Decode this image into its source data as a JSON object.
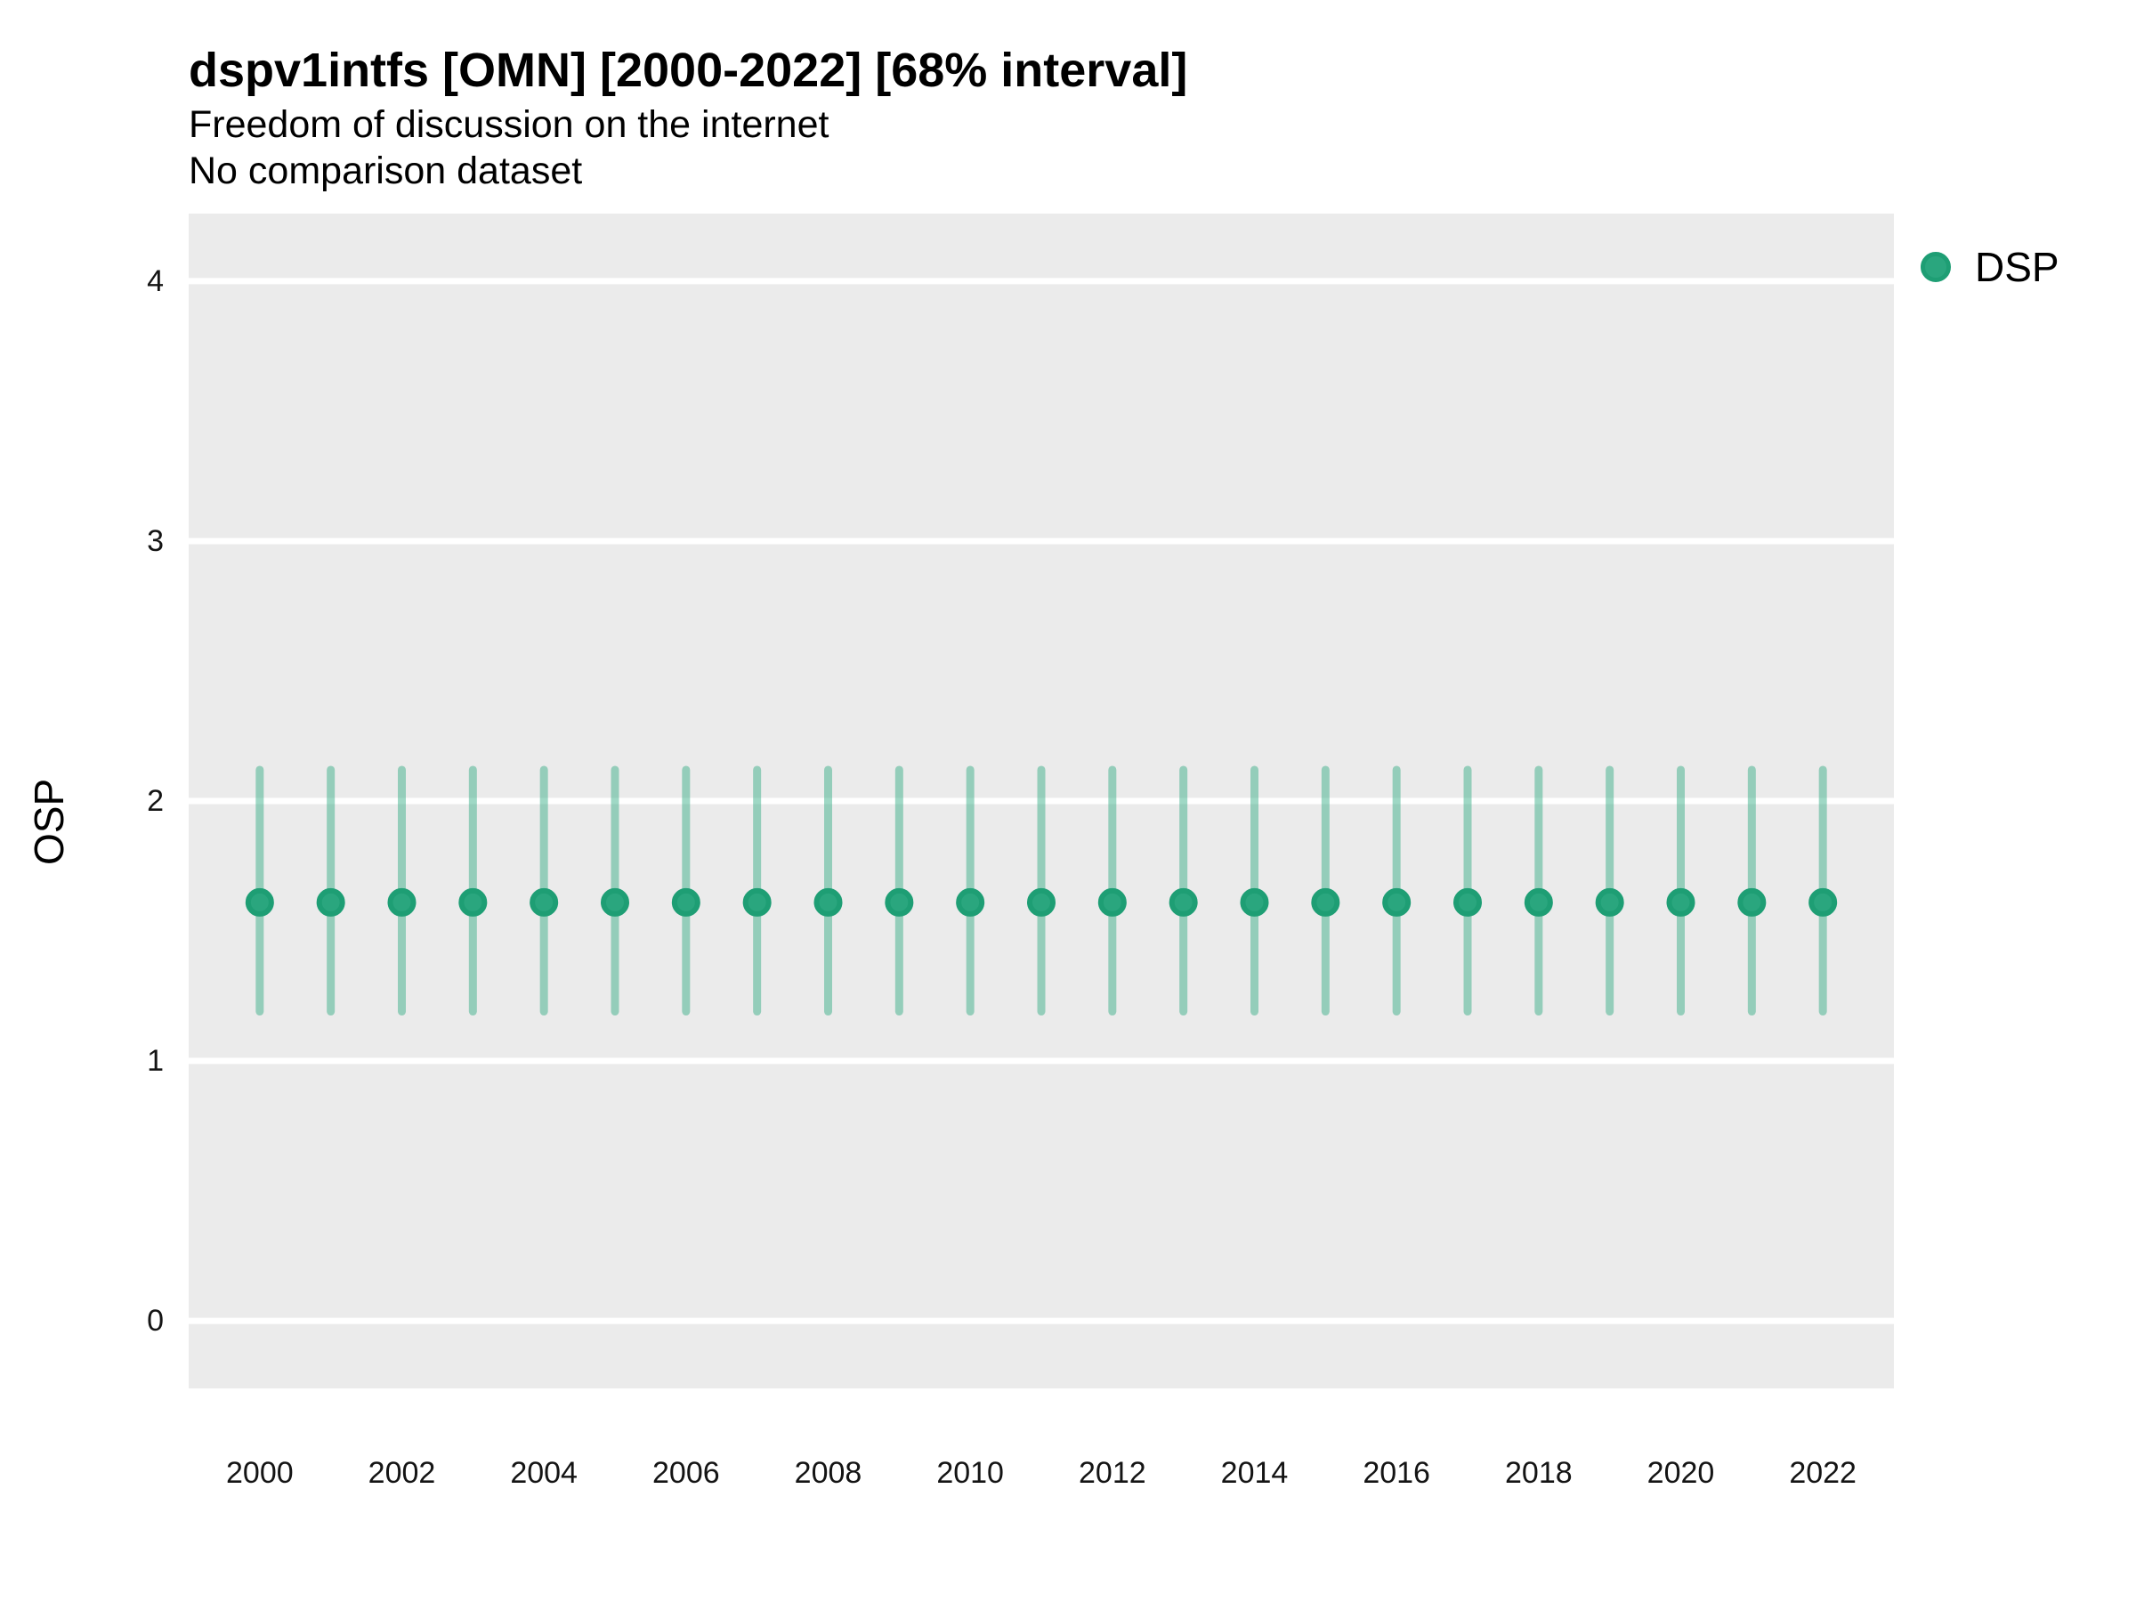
{
  "colors": {
    "page_bg": "#ffffff",
    "panel_bg": "#ebebeb",
    "gridline": "#ffffff",
    "point_fill": "#2aa67e",
    "point_stroke": "#1e9e74",
    "interval_stroke": "rgba(42,168,127,0.45)",
    "tick_text": "#141414",
    "title_text": "#000000"
  },
  "chart_data": {
    "type": "scatter",
    "title": "dspv1intfs [OMN] [2000-2022] [68% interval]",
    "subtitle": "Freedom of discussion on the internet",
    "note": "No comparison dataset",
    "xlabel": "",
    "ylabel": "OSP",
    "x": [
      2000,
      2001,
      2002,
      2003,
      2004,
      2005,
      2006,
      2007,
      2008,
      2009,
      2010,
      2011,
      2012,
      2013,
      2014,
      2015,
      2016,
      2017,
      2018,
      2019,
      2020,
      2021,
      2022
    ],
    "series": [
      {
        "name": "DSP",
        "values": [
          1.61,
          1.61,
          1.61,
          1.61,
          1.61,
          1.61,
          1.61,
          1.61,
          1.61,
          1.61,
          1.61,
          1.61,
          1.61,
          1.61,
          1.61,
          1.61,
          1.61,
          1.61,
          1.61,
          1.61,
          1.61,
          1.61,
          1.61
        ],
        "lower": [
          1.19,
          1.19,
          1.19,
          1.19,
          1.19,
          1.19,
          1.19,
          1.19,
          1.19,
          1.19,
          1.19,
          1.19,
          1.19,
          1.19,
          1.19,
          1.19,
          1.19,
          1.19,
          1.19,
          1.19,
          1.19,
          1.19,
          1.19
        ],
        "upper": [
          2.12,
          2.12,
          2.12,
          2.12,
          2.12,
          2.12,
          2.12,
          2.12,
          2.12,
          2.12,
          2.12,
          2.12,
          2.12,
          2.12,
          2.12,
          2.12,
          2.12,
          2.12,
          2.12,
          2.12,
          2.12,
          2.12,
          2.12
        ],
        "interval_label": "68% interval"
      }
    ],
    "xlim": [
      1999,
      2023
    ],
    "ylim": [
      -0.26,
      4.26
    ],
    "xticks": [
      2000,
      2002,
      2004,
      2006,
      2008,
      2010,
      2012,
      2014,
      2016,
      2018,
      2020,
      2022
    ],
    "yticks": [
      0,
      1,
      2,
      3,
      4
    ],
    "grid": "horizontal-major-only",
    "legend_position": "right",
    "legend": {
      "items": [
        {
          "label": "DSP",
          "color": "#2aa67e"
        }
      ]
    }
  }
}
